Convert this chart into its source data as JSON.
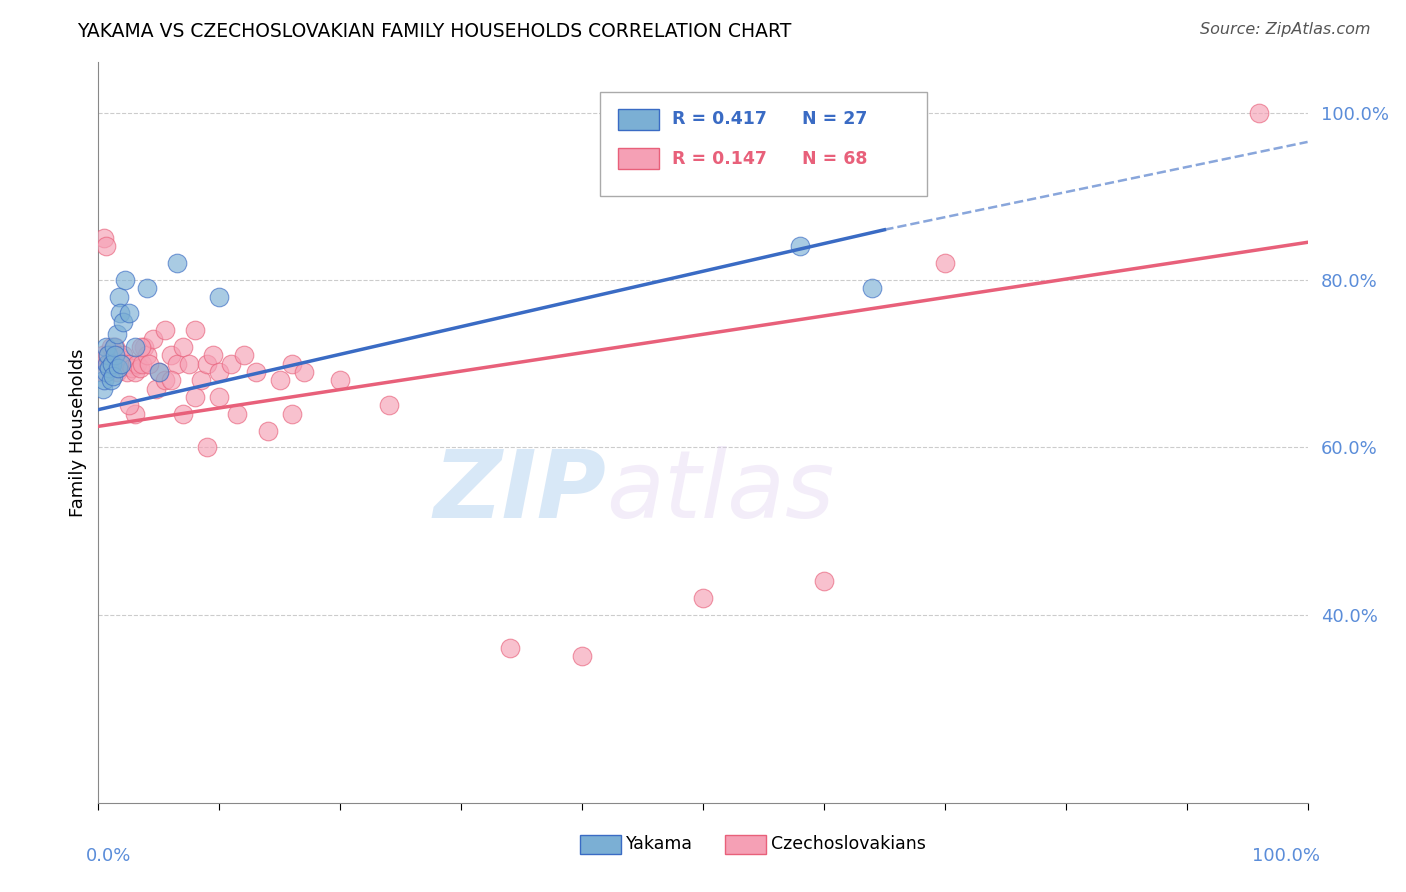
{
  "title": "YAKAMA VS CZECHOSLOVAKIAN FAMILY HOUSEHOLDS CORRELATION CHART",
  "source": "Source: ZipAtlas.com",
  "ylabel": "Family Households",
  "legend_blue_r": "R = 0.417",
  "legend_blue_n": "N = 27",
  "legend_pink_r": "R = 0.147",
  "legend_pink_n": "N = 68",
  "legend_label_blue": "Yakama",
  "legend_label_pink": "Czechoslovakians",
  "watermark_zip": "ZIP",
  "watermark_atlas": "atlas",
  "blue_color": "#7BAFD4",
  "pink_color": "#F5A0B5",
  "trend_blue": "#3A6BC4",
  "trend_pink": "#E8607A",
  "right_tick_color": "#5B8DD9",
  "ytick_labels": [
    "40.0%",
    "60.0%",
    "80.0%",
    "100.0%"
  ],
  "ytick_values": [
    0.4,
    0.6,
    0.8,
    1.0
  ],
  "xmin": 0.0,
  "xmax": 1.0,
  "ymin": 0.175,
  "ymax": 1.06,
  "blue_trend_start_x": 0.0,
  "blue_trend_start_y": 0.645,
  "blue_trend_end_x": 0.65,
  "blue_trend_end_y": 0.86,
  "blue_trend_dashed_end_x": 1.0,
  "blue_trend_dashed_end_y": 0.965,
  "pink_trend_start_x": 0.0,
  "pink_trend_start_y": 0.625,
  "pink_trend_end_x": 1.0,
  "pink_trend_end_y": 0.845,
  "blue_x": [
    0.004,
    0.005,
    0.006,
    0.006,
    0.007,
    0.008,
    0.009,
    0.01,
    0.011,
    0.012,
    0.013,
    0.014,
    0.015,
    0.016,
    0.017,
    0.018,
    0.019,
    0.02,
    0.022,
    0.025,
    0.03,
    0.04,
    0.05,
    0.065,
    0.1,
    0.58,
    0.64
  ],
  "blue_y": [
    0.67,
    0.68,
    0.72,
    0.69,
    0.7,
    0.71,
    0.695,
    0.68,
    0.7,
    0.685,
    0.72,
    0.71,
    0.735,
    0.695,
    0.78,
    0.76,
    0.7,
    0.75,
    0.8,
    0.76,
    0.72,
    0.79,
    0.69,
    0.82,
    0.78,
    0.84,
    0.79
  ],
  "pink_x": [
    0.003,
    0.004,
    0.005,
    0.006,
    0.007,
    0.008,
    0.009,
    0.01,
    0.011,
    0.012,
    0.013,
    0.014,
    0.015,
    0.016,
    0.017,
    0.018,
    0.019,
    0.02,
    0.022,
    0.024,
    0.026,
    0.028,
    0.03,
    0.032,
    0.034,
    0.036,
    0.038,
    0.04,
    0.045,
    0.05,
    0.055,
    0.06,
    0.065,
    0.07,
    0.075,
    0.08,
    0.085,
    0.09,
    0.095,
    0.1,
    0.11,
    0.12,
    0.13,
    0.15,
    0.16,
    0.17,
    0.03,
    0.035,
    0.025,
    0.042,
    0.048,
    0.055,
    0.06,
    0.07,
    0.08,
    0.09,
    0.1,
    0.115,
    0.14,
    0.16,
    0.2,
    0.24,
    0.34,
    0.4,
    0.5,
    0.6,
    0.7,
    0.96
  ],
  "pink_y": [
    0.69,
    0.71,
    0.85,
    0.84,
    0.7,
    0.71,
    0.7,
    0.72,
    0.7,
    0.71,
    0.7,
    0.72,
    0.69,
    0.71,
    0.695,
    0.7,
    0.705,
    0.71,
    0.7,
    0.69,
    0.7,
    0.695,
    0.69,
    0.7,
    0.695,
    0.7,
    0.72,
    0.71,
    0.73,
    0.69,
    0.74,
    0.71,
    0.7,
    0.72,
    0.7,
    0.74,
    0.68,
    0.7,
    0.71,
    0.69,
    0.7,
    0.71,
    0.69,
    0.68,
    0.7,
    0.69,
    0.64,
    0.72,
    0.65,
    0.7,
    0.67,
    0.68,
    0.68,
    0.64,
    0.66,
    0.6,
    0.66,
    0.64,
    0.62,
    0.64,
    0.68,
    0.65,
    0.36,
    0.35,
    0.42,
    0.44,
    0.82,
    1.0
  ]
}
